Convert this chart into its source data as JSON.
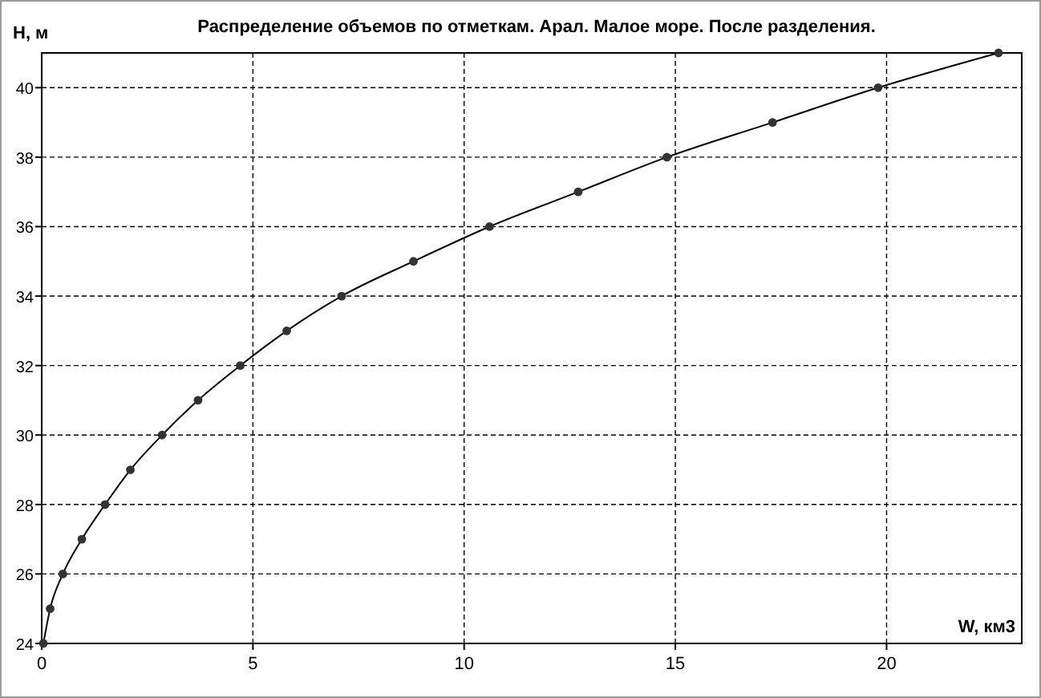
{
  "chart_data": {
    "type": "line",
    "title": "Распределение объемов по отметкам. Арал. Малое море. После разделения.",
    "xlabel": "W, км3",
    "ylabel": "H, м",
    "x": [
      0.04,
      0.2,
      0.5,
      0.95,
      1.5,
      2.1,
      2.85,
      3.7,
      4.7,
      5.8,
      7.1,
      8.8,
      10.6,
      12.7,
      14.8,
      17.3,
      19.8,
      22.65
    ],
    "series": [
      {
        "color": "#000000",
        "values": [
          24,
          25,
          26,
          27,
          28,
          29,
          30,
          31,
          32,
          33,
          34,
          35,
          36,
          37,
          38,
          39,
          40,
          41
        ]
      }
    ],
    "xlim": [
      0,
      23.2
    ],
    "ylim": [
      24,
      41
    ],
    "xticks": [
      0,
      5,
      10,
      15,
      20
    ],
    "yticks": [
      24,
      26,
      28,
      30,
      32,
      34,
      36,
      38,
      40
    ],
    "grid": true,
    "marker": "circle",
    "line_style": "solid"
  }
}
